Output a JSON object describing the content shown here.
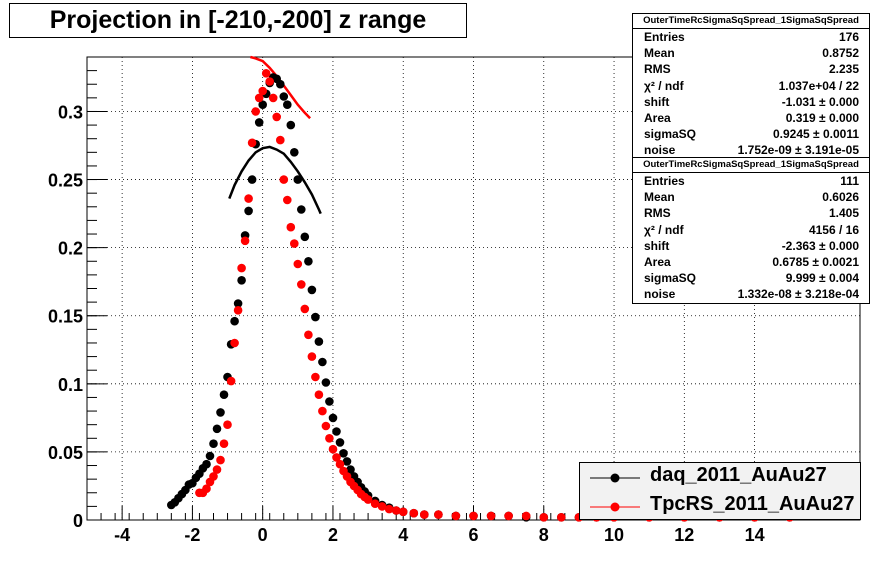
{
  "title": "Projection in [-210,-200] z range",
  "colors": {
    "daq": "#000000",
    "tpcrs": "#ff0000",
    "grid": "#000000"
  },
  "stats": [
    {
      "name": "OuterTimeRcSigmaSqSpread_1SigmaSqSpread",
      "rows": [
        {
          "label": "Entries",
          "value": "176"
        },
        {
          "label": "Mean",
          "value": "0.8752"
        },
        {
          "label": "RMS",
          "value": "2.235"
        },
        {
          "label": "χ² / ndf",
          "value": "1.037e+04 / 22"
        },
        {
          "label": "shift",
          "value": "-1.031 ± 0.000"
        },
        {
          "label": "Area",
          "value": "0.319 ± 0.000"
        },
        {
          "label": "sigmaSQ",
          "value": "0.9245 ± 0.0011"
        },
        {
          "label": "noise",
          "value": "1.752e-09 ± 3.191e-05"
        }
      ]
    },
    {
      "name": "OuterTimeRcSigmaSqSpread_1SigmaSqSpread",
      "rows": [
        {
          "label": "Entries",
          "value": "111"
        },
        {
          "label": "Mean",
          "value": "0.6026"
        },
        {
          "label": "RMS",
          "value": "1.405"
        },
        {
          "label": "χ² / ndf",
          "value": "4156 / 16"
        },
        {
          "label": "shift",
          "value": "-2.363 ± 0.000"
        },
        {
          "label": "Area",
          "value": "0.6785 ± 0.0021"
        },
        {
          "label": "sigmaSQ",
          "value": "9.999 ± 0.004"
        },
        {
          "label": "noise",
          "value": "1.332e-08 ± 3.218e-04"
        }
      ]
    }
  ],
  "legend": [
    {
      "label": "daq_2011_AuAu27",
      "color": "#000000"
    },
    {
      "label": "TpcRS_2011_AuAu27",
      "color": "#ff0000"
    }
  ],
  "chart_data": {
    "type": "scatter",
    "title": "Projection in [-210,-200] z range",
    "xlabel": "",
    "ylabel": "",
    "xlim": [
      -5,
      17
    ],
    "ylim": [
      0,
      0.34
    ],
    "x_ticks": [
      "-4",
      "-2",
      "0",
      "2",
      "4",
      "6",
      "8",
      "10",
      "12",
      "14"
    ],
    "x_tick_values": [
      -4,
      -2,
      0,
      2,
      4,
      6,
      8,
      10,
      12,
      14
    ],
    "y_ticks": [
      "0",
      "0.05",
      "0.1",
      "0.15",
      "0.2",
      "0.25",
      "0.3"
    ],
    "y_tick_values": [
      0,
      0.05,
      0.1,
      0.15,
      0.2,
      0.25,
      0.3
    ],
    "grid": true,
    "series": [
      {
        "name": "daq_2011_AuAu27",
        "color": "#000000",
        "x": [
          -2.6,
          -2.5,
          -2.4,
          -2.3,
          -2.2,
          -2.1,
          -2.0,
          -1.9,
          -1.8,
          -1.7,
          -1.6,
          -1.5,
          -1.4,
          -1.3,
          -1.2,
          -1.1,
          -1.0,
          -0.9,
          -0.8,
          -0.7,
          -0.6,
          -0.5,
          -0.4,
          -0.3,
          -0.2,
          -0.1,
          0.0,
          0.1,
          0.2,
          0.3,
          0.4,
          0.5,
          0.6,
          0.7,
          0.8,
          0.9,
          1.0,
          1.1,
          1.2,
          1.3,
          1.4,
          1.5,
          1.6,
          1.7,
          1.8,
          1.9,
          2.0,
          2.1,
          2.2,
          2.3,
          2.4,
          2.5,
          2.6,
          2.7,
          2.8,
          2.9,
          3.0,
          3.2,
          3.4,
          3.6,
          3.8,
          4.0,
          4.3,
          4.6,
          5.0,
          5.5,
          6.0,
          6.5,
          7.0,
          7.5,
          8.0,
          8.5,
          9.0,
          9.5,
          10.0,
          11.0,
          12.0,
          13.0,
          14.0,
          15.0
        ],
        "y": [
          0.011,
          0.013,
          0.016,
          0.019,
          0.022,
          0.026,
          0.027,
          0.031,
          0.034,
          0.038,
          0.041,
          0.047,
          0.056,
          0.067,
          0.079,
          0.092,
          0.105,
          0.129,
          0.146,
          0.159,
          0.176,
          0.209,
          0.227,
          0.25,
          0.276,
          0.292,
          0.305,
          0.313,
          0.321,
          0.325,
          0.324,
          0.32,
          0.311,
          0.305,
          0.29,
          0.27,
          0.25,
          0.228,
          0.208,
          0.19,
          0.169,
          0.149,
          0.131,
          0.116,
          0.101,
          0.087,
          0.075,
          0.065,
          0.057,
          0.049,
          0.043,
          0.037,
          0.032,
          0.028,
          0.024,
          0.021,
          0.018,
          0.014,
          0.011,
          0.009,
          0.007,
          0.006,
          0.005,
          0.004,
          0.004,
          0.003,
          0.003,
          0.003,
          0.003,
          0.002,
          0.002,
          0.002,
          0.002,
          0.002,
          0.002,
          0.002,
          0.002,
          0.002,
          0.002,
          0.002
        ],
        "fit": {
          "x": [
            -0.95,
            -0.8,
            -0.6,
            -0.4,
            -0.2,
            0.0,
            0.2,
            0.4,
            0.6,
            0.8,
            1.0,
            1.2,
            1.4,
            1.6,
            1.65
          ],
          "y": [
            0.236,
            0.246,
            0.256,
            0.264,
            0.27,
            0.273,
            0.274,
            0.272,
            0.269,
            0.263,
            0.256,
            0.248,
            0.239,
            0.228,
            0.225
          ]
        }
      },
      {
        "name": "TpcRS_2011_AuAu27",
        "color": "#ff0000",
        "x": [
          -1.8,
          -1.7,
          -1.6,
          -1.5,
          -1.4,
          -1.3,
          -1.2,
          -1.1,
          -1.0,
          -0.9,
          -0.8,
          -0.7,
          -0.6,
          -0.5,
          -0.4,
          -0.3,
          -0.2,
          -0.1,
          0.0,
          0.1,
          0.2,
          0.3,
          0.4,
          0.5,
          0.6,
          0.7,
          0.8,
          0.9,
          1.0,
          1.1,
          1.2,
          1.3,
          1.4,
          1.5,
          1.6,
          1.7,
          1.8,
          1.9,
          2.0,
          2.1,
          2.2,
          2.3,
          2.4,
          2.5,
          2.6,
          2.7,
          2.8,
          2.9,
          3.0,
          3.2,
          3.4,
          3.6,
          3.8,
          4.0,
          4.3,
          4.6,
          5.0,
          5.5,
          6.0,
          6.5,
          7.0,
          7.5,
          8.0,
          8.5,
          9.0,
          9.5,
          10.0,
          11.0,
          12.0,
          13.0,
          14.0,
          15.0
        ],
        "y": [
          0.02,
          0.02,
          0.023,
          0.028,
          0.032,
          0.037,
          0.044,
          0.056,
          0.07,
          0.102,
          0.13,
          0.154,
          0.185,
          0.205,
          0.236,
          0.277,
          0.3,
          0.31,
          0.315,
          0.328,
          0.322,
          0.31,
          0.296,
          0.279,
          0.25,
          0.235,
          0.215,
          0.203,
          0.188,
          0.173,
          0.155,
          0.136,
          0.12,
          0.105,
          0.092,
          0.08,
          0.069,
          0.06,
          0.052,
          0.046,
          0.041,
          0.036,
          0.032,
          0.028,
          0.025,
          0.022,
          0.019,
          0.017,
          0.015,
          0.012,
          0.01,
          0.008,
          0.007,
          0.006,
          0.005,
          0.004,
          0.004,
          0.003,
          0.003,
          0.003,
          0.003,
          0.003,
          0.002,
          0.002,
          0.002,
          0.002,
          0.002,
          0.002,
          0.002,
          0.002,
          0.002,
          0.002
        ],
        "fit": {
          "x": [
            -0.35,
            -0.2,
            0.0,
            0.2,
            0.4,
            0.6,
            0.8,
            1.0,
            1.2,
            1.35
          ],
          "y": [
            0.34,
            0.339,
            0.337,
            0.332,
            0.326,
            0.319,
            0.312,
            0.305,
            0.299,
            0.295
          ]
        }
      }
    ]
  }
}
